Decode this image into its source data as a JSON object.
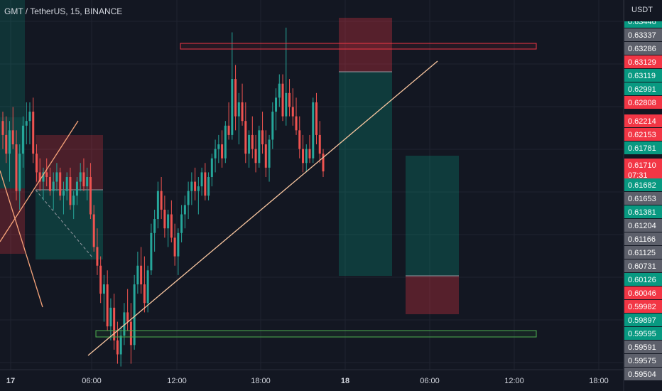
{
  "title": "GMT / TetherUS, 15, BINANCE",
  "currency": "USDT",
  "chart_data": {
    "type": "candlestick",
    "y_axis": {
      "labels": [
        {
          "value": 0.63446,
          "text": "0.63446",
          "style": "green"
        },
        {
          "value": 0.63337,
          "text": "0.63337",
          "style": "gray"
        },
        {
          "value": 0.63286,
          "text": "0.63286",
          "style": "gray"
        },
        {
          "value": 0.63129,
          "text": "0.63129",
          "style": "red"
        },
        {
          "value": 0.63119,
          "text": "0.63119",
          "style": "green"
        },
        {
          "value": 0.62991,
          "text": "0.62991",
          "style": "green"
        },
        {
          "value": 0.62808,
          "text": "0.62808",
          "style": "red"
        },
        {
          "value": 0.62214,
          "text": "0.62214",
          "style": "red"
        },
        {
          "value": 0.62153,
          "text": "0.62153",
          "style": "red"
        },
        {
          "value": 0.61781,
          "text": "0.61781",
          "style": "green"
        },
        {
          "value": 0.6171,
          "text": "0.61710",
          "style": "red-big",
          "sub": "07:31"
        },
        {
          "value": 0.61682,
          "text": "0.61682",
          "style": "green"
        },
        {
          "value": 0.61653,
          "text": "0.61653",
          "style": "gray"
        },
        {
          "value": 0.61381,
          "text": "0.61381",
          "style": "green"
        },
        {
          "value": 0.61204,
          "text": "0.61204",
          "style": "gray"
        },
        {
          "value": 0.61166,
          "text": "0.61166",
          "style": "gray"
        },
        {
          "value": 0.61125,
          "text": "0.61125",
          "style": "gray"
        },
        {
          "value": 0.60731,
          "text": "0.60731",
          "style": "gray"
        },
        {
          "value": 0.60126,
          "text": "0.60126",
          "style": "green"
        },
        {
          "value": 0.60046,
          "text": "0.60046",
          "style": "red"
        },
        {
          "value": 0.59982,
          "text": "0.59982",
          "style": "red"
        },
        {
          "value": 0.59897,
          "text": "0.59897",
          "style": "green"
        },
        {
          "value": 0.59595,
          "text": "0.59595",
          "style": "green"
        },
        {
          "value": 0.59591,
          "text": "0.59591",
          "style": "gray"
        },
        {
          "value": 0.59575,
          "text": "0.59575",
          "style": "gray"
        },
        {
          "value": 0.59504,
          "text": "0.59504",
          "style": "gray"
        }
      ]
    },
    "x_axis": {
      "ticks": [
        {
          "label": "17",
          "bold": true
        },
        {
          "label": "06:00",
          "bold": false
        },
        {
          "label": "12:00",
          "bold": false
        },
        {
          "label": "18:00",
          "bold": false
        },
        {
          "label": "18",
          "bold": true
        },
        {
          "label": "06:00",
          "bold": false
        },
        {
          "label": "12:00",
          "bold": false
        },
        {
          "label": "18:00",
          "bold": false
        }
      ]
    },
    "candles": [
      [
        0.6225,
        0.6235,
        0.6195,
        0.621
      ],
      [
        0.621,
        0.623,
        0.618,
        0.619
      ],
      [
        0.619,
        0.6225,
        0.616,
        0.6215
      ],
      [
        0.6215,
        0.624,
        0.6195,
        0.62
      ],
      [
        0.62,
        0.6215,
        0.614,
        0.615
      ],
      [
        0.615,
        0.62,
        0.613,
        0.619
      ],
      [
        0.619,
        0.623,
        0.6175,
        0.622
      ],
      [
        0.622,
        0.6245,
        0.62,
        0.6225
      ],
      [
        0.6225,
        0.6245,
        0.62,
        0.6235
      ],
      [
        0.6235,
        0.625,
        0.618,
        0.619
      ],
      [
        0.619,
        0.62,
        0.616,
        0.617
      ],
      [
        0.617,
        0.6185,
        0.615,
        0.616
      ],
      [
        0.616,
        0.6175,
        0.614,
        0.617
      ],
      [
        0.617,
        0.6185,
        0.6155,
        0.6165
      ],
      [
        0.6165,
        0.6175,
        0.6145,
        0.615
      ],
      [
        0.615,
        0.617,
        0.613,
        0.616
      ],
      [
        0.616,
        0.618,
        0.615,
        0.617
      ],
      [
        0.617,
        0.6175,
        0.614,
        0.6145
      ],
      [
        0.6145,
        0.616,
        0.6125,
        0.615
      ],
      [
        0.615,
        0.617,
        0.614,
        0.6165
      ],
      [
        0.6165,
        0.6175,
        0.613,
        0.6135
      ],
      [
        0.6135,
        0.615,
        0.612,
        0.6145
      ],
      [
        0.6145,
        0.6165,
        0.6135,
        0.616
      ],
      [
        0.616,
        0.618,
        0.615,
        0.617
      ],
      [
        0.617,
        0.6185,
        0.615,
        0.6155
      ],
      [
        0.6155,
        0.6175,
        0.614,
        0.6165
      ],
      [
        0.6165,
        0.618,
        0.612,
        0.6125
      ],
      [
        0.6125,
        0.6135,
        0.6085,
        0.609
      ],
      [
        0.609,
        0.611,
        0.606,
        0.607
      ],
      [
        0.607,
        0.608,
        0.603,
        0.604
      ],
      [
        0.604,
        0.606,
        0.601,
        0.605
      ],
      [
        0.605,
        0.6065,
        0.6,
        0.6005
      ],
      [
        0.6005,
        0.6035,
        0.599,
        0.6025
      ],
      [
        0.6025,
        0.604,
        0.598,
        0.599
      ],
      [
        0.599,
        0.601,
        0.5965,
        0.5975
      ],
      [
        0.5975,
        0.6005,
        0.5962,
        0.5995
      ],
      [
        0.5995,
        0.603,
        0.5985,
        0.602
      ],
      [
        0.602,
        0.6045,
        0.6,
        0.601
      ],
      [
        0.601,
        0.603,
        0.5965,
        0.5985
      ],
      [
        0.5985,
        0.606,
        0.598,
        0.605
      ],
      [
        0.605,
        0.6085,
        0.604,
        0.607
      ],
      [
        0.607,
        0.609,
        0.604,
        0.605
      ],
      [
        0.605,
        0.608,
        0.602,
        0.603
      ],
      [
        0.603,
        0.607,
        0.602,
        0.6065
      ],
      [
        0.6065,
        0.6115,
        0.606,
        0.6105
      ],
      [
        0.6105,
        0.613,
        0.6085,
        0.612
      ],
      [
        0.612,
        0.616,
        0.611,
        0.615
      ],
      [
        0.615,
        0.6165,
        0.612,
        0.613
      ],
      [
        0.613,
        0.6145,
        0.61,
        0.611
      ],
      [
        0.611,
        0.613,
        0.609,
        0.6125
      ],
      [
        0.6125,
        0.614,
        0.6095,
        0.61
      ],
      [
        0.61,
        0.6115,
        0.607,
        0.608
      ],
      [
        0.608,
        0.611,
        0.606,
        0.6105
      ],
      [
        0.6105,
        0.6135,
        0.6095,
        0.6125
      ],
      [
        0.6125,
        0.6145,
        0.611,
        0.6135
      ],
      [
        0.6135,
        0.616,
        0.612,
        0.615
      ],
      [
        0.615,
        0.617,
        0.6135,
        0.616
      ],
      [
        0.616,
        0.6175,
        0.614,
        0.615
      ],
      [
        0.615,
        0.6165,
        0.6125,
        0.6155
      ],
      [
        0.6155,
        0.6175,
        0.6145,
        0.617
      ],
      [
        0.617,
        0.618,
        0.614,
        0.6145
      ],
      [
        0.6145,
        0.617,
        0.614,
        0.6165
      ],
      [
        0.6165,
        0.619,
        0.6155,
        0.6185
      ],
      [
        0.6185,
        0.6205,
        0.617,
        0.6195
      ],
      [
        0.6195,
        0.621,
        0.618,
        0.62
      ],
      [
        0.62,
        0.6215,
        0.6175,
        0.6185
      ],
      [
        0.6185,
        0.6225,
        0.618,
        0.622
      ],
      [
        0.622,
        0.6245,
        0.6205,
        0.621
      ],
      [
        0.621,
        0.632,
        0.6205,
        0.627
      ],
      [
        0.627,
        0.6285,
        0.6215,
        0.623
      ],
      [
        0.623,
        0.6255,
        0.62,
        0.6245
      ],
      [
        0.6245,
        0.6265,
        0.622,
        0.6225
      ],
      [
        0.6225,
        0.6245,
        0.618,
        0.619
      ],
      [
        0.619,
        0.6215,
        0.6175,
        0.621
      ],
      [
        0.621,
        0.623,
        0.6185,
        0.6195
      ],
      [
        0.6195,
        0.621,
        0.617,
        0.618
      ],
      [
        0.618,
        0.622,
        0.6175,
        0.6215
      ],
      [
        0.6215,
        0.6235,
        0.619,
        0.62
      ],
      [
        0.62,
        0.6215,
        0.6165,
        0.6175
      ],
      [
        0.6175,
        0.621,
        0.616,
        0.6205
      ],
      [
        0.6205,
        0.6245,
        0.6195,
        0.6235
      ],
      [
        0.6235,
        0.626,
        0.6215,
        0.625
      ],
      [
        0.625,
        0.6275,
        0.624,
        0.6265
      ],
      [
        0.6265,
        0.6275,
        0.6225,
        0.623
      ],
      [
        0.623,
        0.6325,
        0.622,
        0.6255
      ],
      [
        0.6255,
        0.627,
        0.623,
        0.624
      ],
      [
        0.624,
        0.626,
        0.622,
        0.623
      ],
      [
        0.623,
        0.625,
        0.621,
        0.6215
      ],
      [
        0.6215,
        0.623,
        0.6185,
        0.6195
      ],
      [
        0.6195,
        0.621,
        0.617,
        0.618
      ],
      [
        0.618,
        0.62,
        0.617,
        0.6195
      ],
      [
        0.6195,
        0.621,
        0.618,
        0.6185
      ],
      [
        0.6185,
        0.625,
        0.618,
        0.6245
      ],
      [
        0.6245,
        0.6255,
        0.62,
        0.621
      ],
      [
        0.621,
        0.6225,
        0.618,
        0.619
      ],
      [
        0.619,
        0.6195,
        0.6165,
        0.6171
      ]
    ],
    "ylim": [
      0.5951,
      0.6347
    ]
  }
}
